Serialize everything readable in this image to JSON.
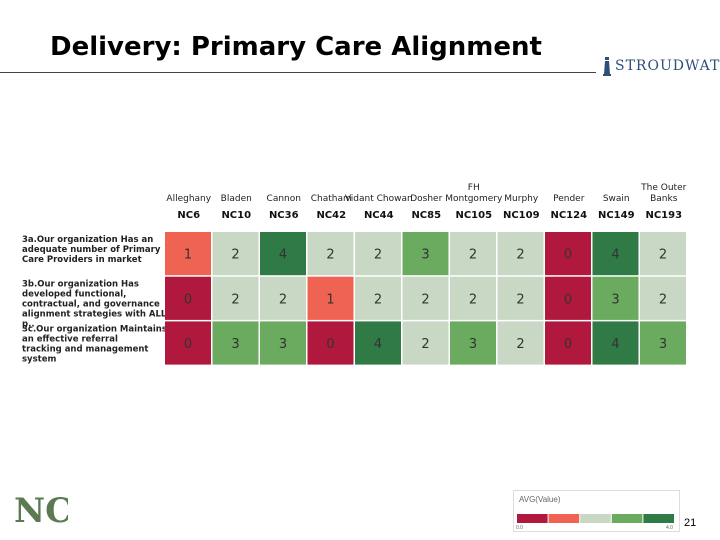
{
  "title": "Delivery:  Primary Care Alignment",
  "brand": {
    "text": "STROUDWATER"
  },
  "page_number": "21",
  "logo": {
    "text": "NC"
  },
  "legend": {
    "title": "AVG(Value)",
    "min_label": "0.0",
    "max_label": "4.0",
    "colors": [
      "#b0193d",
      "#ee6352",
      "#c9d8c5",
      "#6aab5f",
      "#2f7a45"
    ]
  },
  "chart_data": {
    "type": "heatmap",
    "columns": [
      {
        "name": "Alleghany",
        "code": "NC6"
      },
      {
        "name": "Bladen",
        "code": "NC10"
      },
      {
        "name": "Cannon",
        "code": "NC36"
      },
      {
        "name": "Chatham",
        "code": "NC42"
      },
      {
        "name": "Vidant Chowan",
        "code": "NC44"
      },
      {
        "name": "Dosher",
        "code": "NC85"
      },
      {
        "name": "FH Montgomery",
        "code": "NC105"
      },
      {
        "name": "Murphy",
        "code": "NC109"
      },
      {
        "name": "Pender",
        "code": "NC124"
      },
      {
        "name": "Swain",
        "code": "NC149"
      },
      {
        "name": "The Outer Banks",
        "code": "NC193"
      }
    ],
    "rows": [
      {
        "label": "3a.Our organization Has an adequate number of Primary Care Providers in market",
        "values": [
          1,
          2,
          4,
          2,
          2,
          3,
          2,
          2,
          0,
          4,
          2
        ]
      },
      {
        "label": "3b.Our organization Has developed functional, contractual, and governance alignment strategies with ALL p..",
        "values": [
          0,
          2,
          2,
          1,
          2,
          2,
          2,
          2,
          0,
          3,
          2
        ]
      },
      {
        "label": "3c.Our organization Maintains an effective referral tracking and management system",
        "values": [
          0,
          3,
          3,
          0,
          4,
          2,
          3,
          2,
          0,
          4,
          3
        ]
      }
    ],
    "value_range": [
      0,
      4
    ]
  }
}
